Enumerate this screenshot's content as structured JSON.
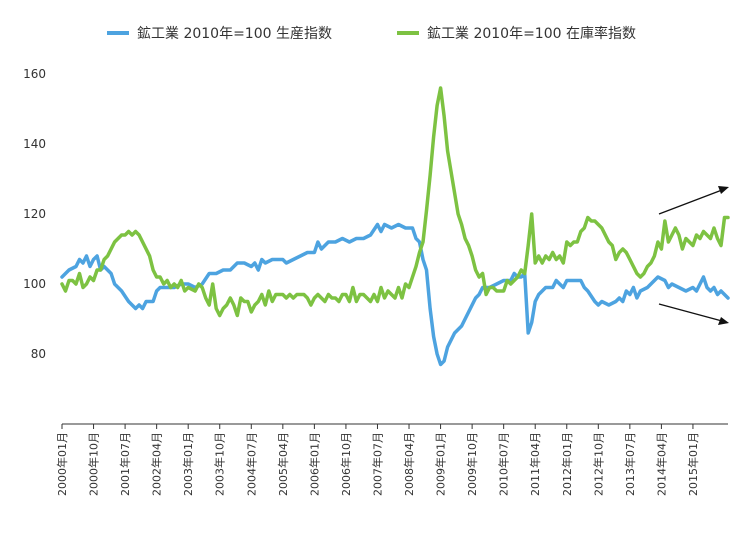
{
  "chart_data": {
    "type": "line",
    "title": "",
    "xlabel": "",
    "ylabel": "",
    "ylim": [
      60,
      160
    ],
    "yticks": [
      80,
      100,
      120,
      140,
      160
    ],
    "grid": false,
    "legend_position": "top",
    "x_tick_labels": [
      "2000年01月",
      "2000年10月",
      "2001年07月",
      "2002年04月",
      "2003年01月",
      "2003年10月",
      "2004年07月",
      "2005年04月",
      "2006年01月",
      "2006年10月",
      "2007年07月",
      "2008年04月",
      "2009年01月",
      "2009年10月",
      "2010年07月",
      "2011年04月",
      "2012年01月",
      "2012年10月",
      "2013年07月",
      "2014年04月",
      "2015年01月"
    ],
    "x_tick_months": [
      0,
      9,
      18,
      27,
      36,
      45,
      54,
      63,
      72,
      81,
      90,
      99,
      108,
      117,
      126,
      135,
      144,
      153,
      162,
      171,
      180
    ],
    "x_start": "2000年01月",
    "x_end": "2015年10月",
    "series": [
      {
        "name": "鉱工業 2010年=100 生産指数",
        "color": "#4DA3E0",
        "points": [
          [
            0,
            102
          ],
          [
            2,
            104
          ],
          [
            4,
            105
          ],
          [
            5,
            107
          ],
          [
            6,
            106
          ],
          [
            7,
            108
          ],
          [
            8,
            105
          ],
          [
            9,
            107
          ],
          [
            10,
            108
          ],
          [
            11,
            104
          ],
          [
            12,
            105
          ],
          [
            13,
            104
          ],
          [
            14,
            103
          ],
          [
            15,
            100
          ],
          [
            17,
            98
          ],
          [
            19,
            95
          ],
          [
            21,
            93
          ],
          [
            22,
            94
          ],
          [
            23,
            93
          ],
          [
            24,
            95
          ],
          [
            26,
            95
          ],
          [
            27,
            98
          ],
          [
            28,
            99
          ],
          [
            30,
            99
          ],
          [
            32,
            99
          ],
          [
            34,
            100
          ],
          [
            36,
            100
          ],
          [
            38,
            99
          ],
          [
            40,
            100
          ],
          [
            42,
            103
          ],
          [
            44,
            103
          ],
          [
            46,
            104
          ],
          [
            48,
            104
          ],
          [
            50,
            106
          ],
          [
            52,
            106
          ],
          [
            54,
            105
          ],
          [
            55,
            106
          ],
          [
            56,
            104
          ],
          [
            57,
            107
          ],
          [
            58,
            106
          ],
          [
            60,
            107
          ],
          [
            63,
            107
          ],
          [
            64,
            106
          ],
          [
            66,
            107
          ],
          [
            68,
            108
          ],
          [
            70,
            109
          ],
          [
            72,
            109
          ],
          [
            73,
            112
          ],
          [
            74,
            110
          ],
          [
            76,
            112
          ],
          [
            78,
            112
          ],
          [
            80,
            113
          ],
          [
            82,
            112
          ],
          [
            84,
            113
          ],
          [
            86,
            113
          ],
          [
            88,
            114
          ],
          [
            90,
            117
          ],
          [
            91,
            115
          ],
          [
            92,
            117
          ],
          [
            94,
            116
          ],
          [
            96,
            117
          ],
          [
            98,
            116
          ],
          [
            100,
            116
          ],
          [
            101,
            113
          ],
          [
            102,
            112
          ],
          [
            103,
            107
          ],
          [
            104,
            104
          ],
          [
            105,
            93
          ],
          [
            106,
            85
          ],
          [
            107,
            80
          ],
          [
            108,
            77
          ],
          [
            109,
            78
          ],
          [
            110,
            82
          ],
          [
            111,
            84
          ],
          [
            112,
            86
          ],
          [
            113,
            87
          ],
          [
            114,
            88
          ],
          [
            116,
            92
          ],
          [
            118,
            96
          ],
          [
            119,
            97
          ],
          [
            120,
            99
          ],
          [
            122,
            99
          ],
          [
            124,
            100
          ],
          [
            126,
            101
          ],
          [
            128,
            101
          ],
          [
            129,
            103
          ],
          [
            130,
            102
          ],
          [
            131,
            102
          ],
          [
            132,
            103
          ],
          [
            133,
            86
          ],
          [
            134,
            89
          ],
          [
            135,
            95
          ],
          [
            136,
            97
          ],
          [
            138,
            99
          ],
          [
            140,
            99
          ],
          [
            141,
            101
          ],
          [
            142,
            100
          ],
          [
            143,
            99
          ],
          [
            144,
            101
          ],
          [
            146,
            101
          ],
          [
            148,
            101
          ],
          [
            149,
            99
          ],
          [
            150,
            98
          ],
          [
            152,
            95
          ],
          [
            153,
            94
          ],
          [
            154,
            95
          ],
          [
            156,
            94
          ],
          [
            158,
            95
          ],
          [
            159,
            96
          ],
          [
            160,
            95
          ],
          [
            161,
            98
          ],
          [
            162,
            97
          ],
          [
            163,
            99
          ],
          [
            164,
            96
          ],
          [
            165,
            98
          ],
          [
            167,
            99
          ],
          [
            168,
            100
          ],
          [
            169,
            101
          ],
          [
            170,
            102
          ],
          [
            172,
            101
          ],
          [
            173,
            99
          ],
          [
            174,
            100
          ],
          [
            176,
            99
          ],
          [
            178,
            98
          ],
          [
            180,
            99
          ],
          [
            181,
            98
          ],
          [
            182,
            100
          ],
          [
            183,
            102
          ],
          [
            184,
            99
          ],
          [
            185,
            98
          ],
          [
            186,
            99
          ],
          [
            187,
            97
          ],
          [
            188,
            98
          ],
          [
            189,
            97
          ],
          [
            190,
            96
          ]
        ]
      },
      {
        "name": "鉱工業 2010年=100 在庫率指数",
        "color": "#7DC242",
        "points": [
          [
            0,
            100
          ],
          [
            1,
            98
          ],
          [
            2,
            101
          ],
          [
            3,
            101
          ],
          [
            4,
            100
          ],
          [
            5,
            103
          ],
          [
            6,
            99
          ],
          [
            7,
            100
          ],
          [
            8,
            102
          ],
          [
            9,
            101
          ],
          [
            10,
            104
          ],
          [
            11,
            104
          ],
          [
            12,
            107
          ],
          [
            13,
            108
          ],
          [
            14,
            110
          ],
          [
            15,
            112
          ],
          [
            16,
            113
          ],
          [
            17,
            114
          ],
          [
            18,
            114
          ],
          [
            19,
            115
          ],
          [
            20,
            114
          ],
          [
            21,
            115
          ],
          [
            22,
            114
          ],
          [
            23,
            112
          ],
          [
            24,
            110
          ],
          [
            25,
            108
          ],
          [
            26,
            104
          ],
          [
            27,
            102
          ],
          [
            28,
            102
          ],
          [
            29,
            100
          ],
          [
            30,
            101
          ],
          [
            31,
            99
          ],
          [
            32,
            100
          ],
          [
            33,
            99
          ],
          [
            34,
            101
          ],
          [
            35,
            98
          ],
          [
            36,
            99
          ],
          [
            38,
            98
          ],
          [
            39,
            100
          ],
          [
            40,
            99
          ],
          [
            41,
            96
          ],
          [
            42,
            94
          ],
          [
            43,
            100
          ],
          [
            44,
            93
          ],
          [
            45,
            91
          ],
          [
            46,
            93
          ],
          [
            47,
            94
          ],
          [
            48,
            96
          ],
          [
            49,
            94
          ],
          [
            50,
            91
          ],
          [
            51,
            96
          ],
          [
            52,
            95
          ],
          [
            53,
            95
          ],
          [
            54,
            92
          ],
          [
            55,
            94
          ],
          [
            56,
            95
          ],
          [
            57,
            97
          ],
          [
            58,
            94
          ],
          [
            59,
            98
          ],
          [
            60,
            95
          ],
          [
            61,
            97
          ],
          [
            62,
            97
          ],
          [
            63,
            97
          ],
          [
            64,
            96
          ],
          [
            65,
            97
          ],
          [
            66,
            96
          ],
          [
            67,
            97
          ],
          [
            68,
            97
          ],
          [
            69,
            97
          ],
          [
            70,
            96
          ],
          [
            71,
            94
          ],
          [
            72,
            96
          ],
          [
            73,
            97
          ],
          [
            74,
            96
          ],
          [
            75,
            95
          ],
          [
            76,
            97
          ],
          [
            77,
            96
          ],
          [
            78,
            96
          ],
          [
            79,
            95
          ],
          [
            80,
            97
          ],
          [
            81,
            97
          ],
          [
            82,
            95
          ],
          [
            83,
            99
          ],
          [
            84,
            95
          ],
          [
            85,
            97
          ],
          [
            86,
            97
          ],
          [
            87,
            96
          ],
          [
            88,
            95
          ],
          [
            89,
            97
          ],
          [
            90,
            95
          ],
          [
            91,
            99
          ],
          [
            92,
            96
          ],
          [
            93,
            98
          ],
          [
            94,
            97
          ],
          [
            95,
            96
          ],
          [
            96,
            99
          ],
          [
            97,
            96
          ],
          [
            98,
            100
          ],
          [
            99,
            99
          ],
          [
            100,
            102
          ],
          [
            101,
            105
          ],
          [
            102,
            109
          ],
          [
            103,
            112
          ],
          [
            104,
            121
          ],
          [
            105,
            131
          ],
          [
            106,
            142
          ],
          [
            107,
            151
          ],
          [
            108,
            156
          ],
          [
            109,
            148
          ],
          [
            110,
            138
          ],
          [
            111,
            132
          ],
          [
            112,
            126
          ],
          [
            113,
            120
          ],
          [
            114,
            117
          ],
          [
            115,
            113
          ],
          [
            116,
            111
          ],
          [
            117,
            108
          ],
          [
            118,
            104
          ],
          [
            119,
            102
          ],
          [
            120,
            103
          ],
          [
            121,
            97
          ],
          [
            122,
            99
          ],
          [
            123,
            99
          ],
          [
            124,
            98
          ],
          [
            125,
            98
          ],
          [
            126,
            98
          ],
          [
            127,
            101
          ],
          [
            128,
            100
          ],
          [
            129,
            101
          ],
          [
            130,
            102
          ],
          [
            131,
            104
          ],
          [
            132,
            103
          ],
          [
            133,
            111
          ],
          [
            134,
            120
          ],
          [
            135,
            106
          ],
          [
            136,
            108
          ],
          [
            137,
            106
          ],
          [
            138,
            108
          ],
          [
            139,
            107
          ],
          [
            140,
            109
          ],
          [
            141,
            107
          ],
          [
            142,
            108
          ],
          [
            143,
            106
          ],
          [
            144,
            112
          ],
          [
            145,
            111
          ],
          [
            146,
            112
          ],
          [
            147,
            112
          ],
          [
            148,
            115
          ],
          [
            149,
            116
          ],
          [
            150,
            119
          ],
          [
            151,
            118
          ],
          [
            152,
            118
          ],
          [
            153,
            117
          ],
          [
            154,
            116
          ],
          [
            155,
            114
          ],
          [
            156,
            112
          ],
          [
            157,
            111
          ],
          [
            158,
            107
          ],
          [
            159,
            109
          ],
          [
            160,
            110
          ],
          [
            161,
            109
          ],
          [
            162,
            107
          ],
          [
            163,
            105
          ],
          [
            164,
            103
          ],
          [
            165,
            102
          ],
          [
            166,
            103
          ],
          [
            167,
            105
          ],
          [
            168,
            106
          ],
          [
            169,
            108
          ],
          [
            170,
            112
          ],
          [
            171,
            110
          ],
          [
            172,
            118
          ],
          [
            173,
            112
          ],
          [
            174,
            114
          ],
          [
            175,
            116
          ],
          [
            176,
            114
          ],
          [
            177,
            110
          ],
          [
            178,
            113
          ],
          [
            179,
            112
          ],
          [
            180,
            111
          ],
          [
            181,
            114
          ],
          [
            182,
            113
          ],
          [
            183,
            115
          ],
          [
            184,
            114
          ],
          [
            185,
            113
          ],
          [
            186,
            116
          ],
          [
            187,
            113
          ],
          [
            188,
            111
          ],
          [
            189,
            119
          ],
          [
            190,
            119
          ]
        ]
      }
    ]
  }
}
